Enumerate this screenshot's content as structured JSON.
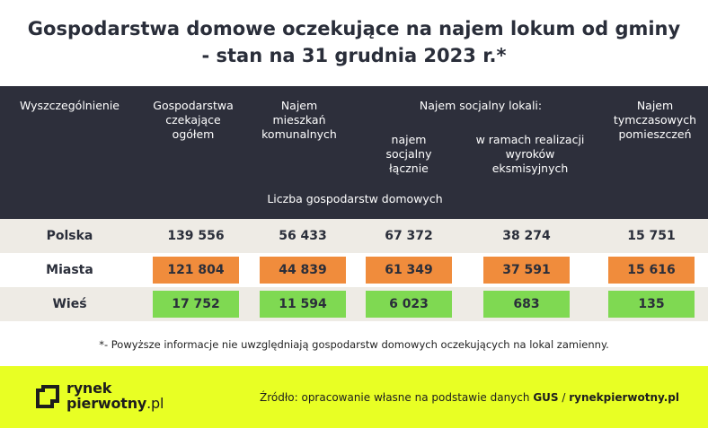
{
  "title": {
    "line1": "Gospodarstwa domowe oczekujące na najem lokum od gminy",
    "line2": "- stan na 31 grudnia 2023 r.*"
  },
  "header": {
    "col0": "Wyszczególnienie",
    "col1": [
      "Gospodarstwa",
      "czekające",
      "ogółem"
    ],
    "col2": [
      "Najem",
      "mieszkań",
      "komunalnych"
    ],
    "group_label": "Najem socjalny lokali:",
    "col3": [
      "najem",
      "socjalny",
      "łącznie"
    ],
    "col4": [
      "w ramach realizacji",
      "wyroków",
      "eksmisyjnych"
    ],
    "col5": [
      "Najem",
      "tymczasowych",
      "pomieszczeń"
    ],
    "unit_label": "Liczba gospodarstw domowych"
  },
  "rows": [
    {
      "label": "Polska",
      "values": [
        "139 556",
        "56 433",
        "67 372",
        "38 274",
        "15 751"
      ],
      "highlight": "none"
    },
    {
      "label": "Miasta",
      "values": [
        "121 804",
        "44 839",
        "61 349",
        "37 591",
        "15 616"
      ],
      "highlight": "#f08c3c"
    },
    {
      "label": "Wieś",
      "values": [
        "17 752",
        "11 594",
        "6 023",
        "683",
        "135"
      ],
      "highlight": "#7fd952"
    }
  ],
  "footnote": "*- Powyższe informacje nie uwzględniają gospodarstw domowych oczekujących na lokal zamienny.",
  "footer": {
    "logo_line1": "rynek",
    "logo_line2a": "pierwotny",
    "logo_line2b": ".pl",
    "source_prefix": "Źródło: opracowanie własne na podstawie danych ",
    "source_gus": "GUS",
    "source_sep": " / ",
    "source_site": "rynekpierwotny.pl"
  },
  "colors": {
    "header_bg": "#2d2f3b",
    "orange": "#f08c3c",
    "green": "#7fd952",
    "footer_bg": "#e8ff24",
    "row_alt": "#eeebe5"
  }
}
